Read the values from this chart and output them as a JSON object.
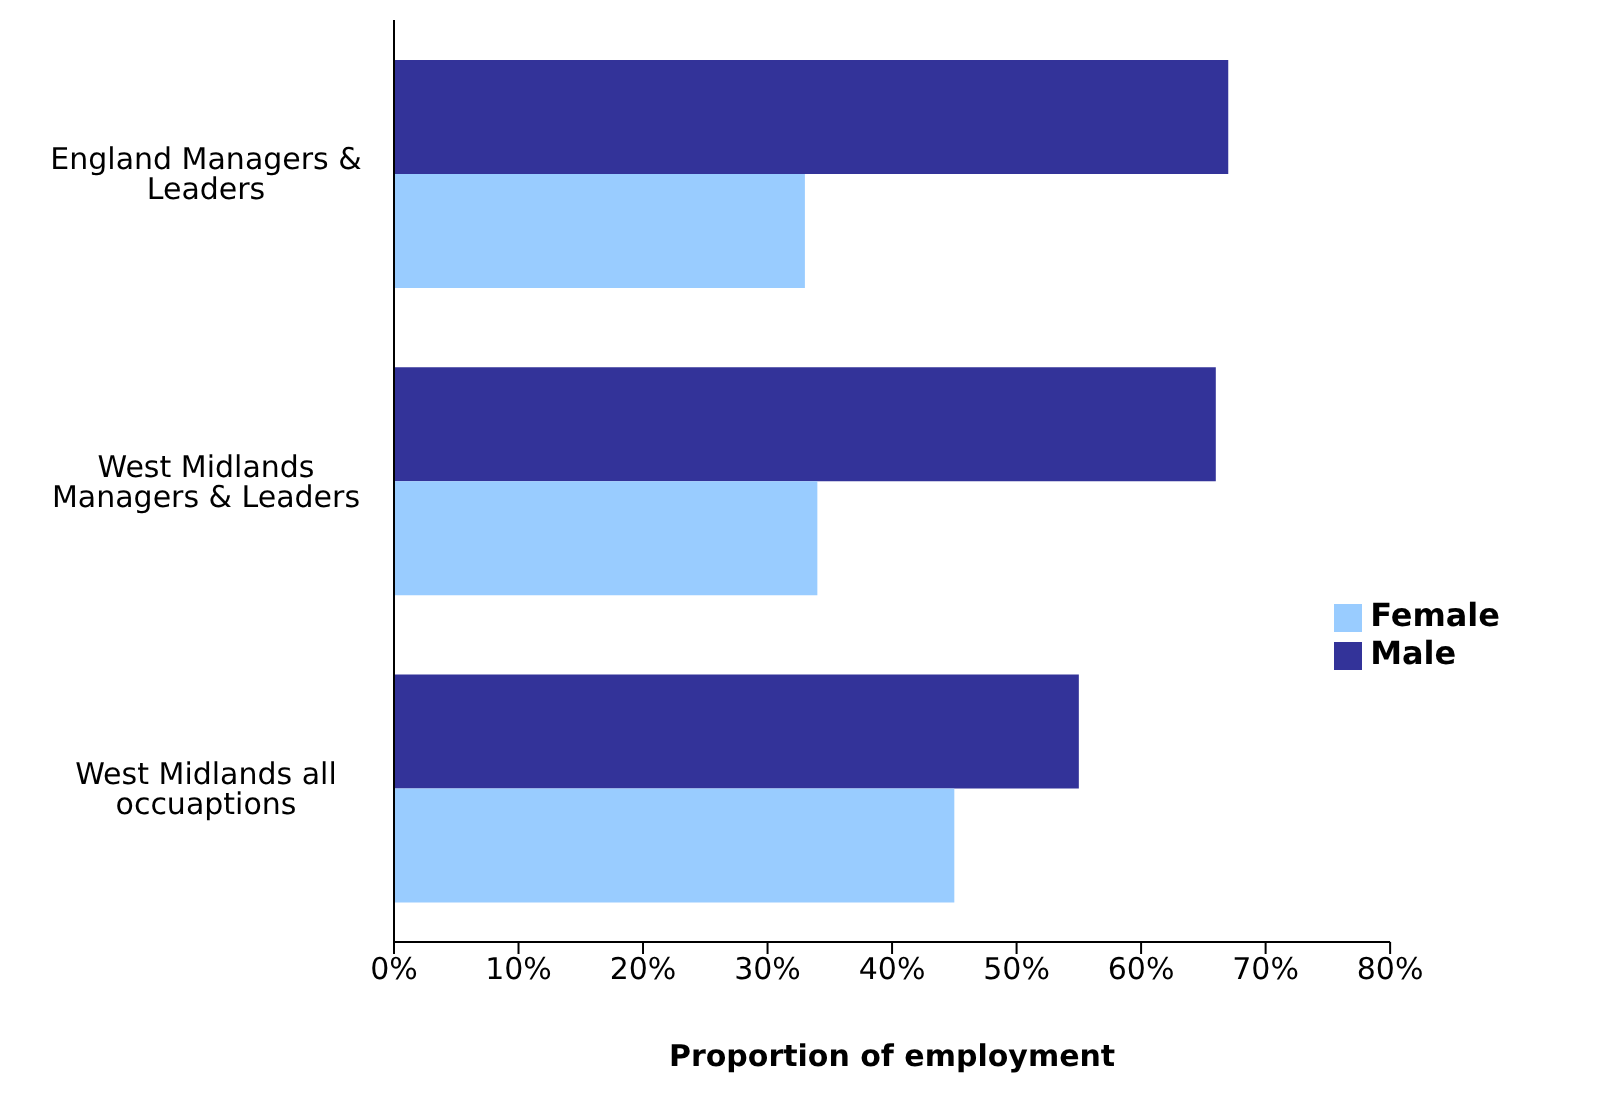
{
  "chart_data": {
    "type": "bar",
    "orientation": "horizontal",
    "xlabel": "Proportion of employment",
    "categories": [
      "England Managers & Leaders",
      "West Midlands Managers & Leaders",
      "West Midlands all occuaptions"
    ],
    "series": [
      {
        "name": "Male",
        "color": "#333399",
        "values": [
          67,
          66,
          55
        ]
      },
      {
        "name": "Female",
        "color": "#99ccff",
        "values": [
          33,
          34,
          45
        ]
      }
    ],
    "xlim": [
      0,
      80
    ],
    "xticks": [
      {
        "value": 0,
        "label": "0%"
      },
      {
        "value": 10,
        "label": "10%"
      },
      {
        "value": 20,
        "label": "20%"
      },
      {
        "value": 30,
        "label": "30%"
      },
      {
        "value": 40,
        "label": "40%"
      },
      {
        "value": 50,
        "label": "50%"
      },
      {
        "value": 60,
        "label": "60%"
      },
      {
        "value": 70,
        "label": "70%"
      },
      {
        "value": 80,
        "label": "80%"
      }
    ],
    "grid": false,
    "legend": "right"
  }
}
